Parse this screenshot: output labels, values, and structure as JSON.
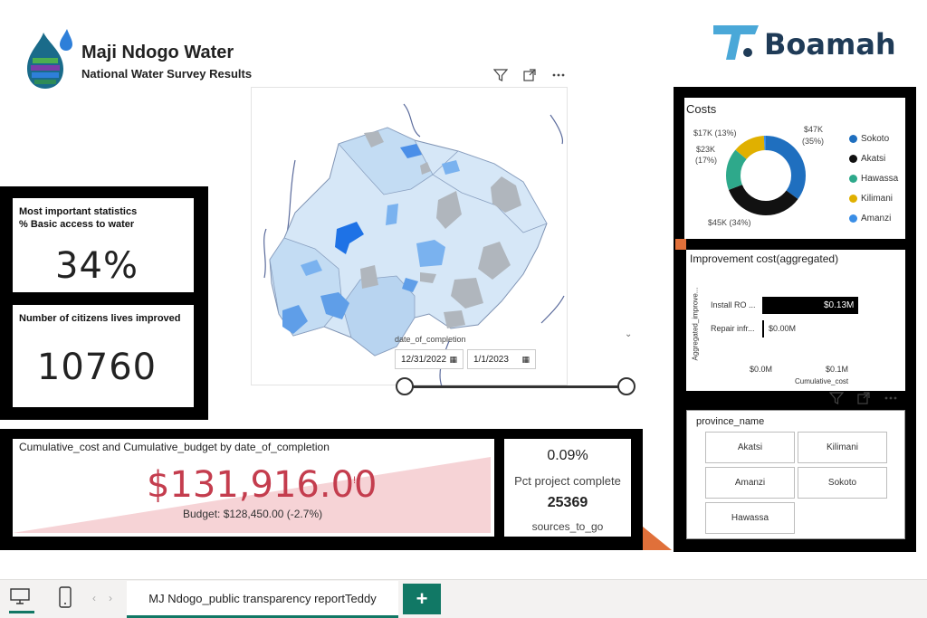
{
  "header": {
    "title": "Maji Ndogo Water",
    "subtitle": "National Water Survey Results",
    "brand": "Boamah"
  },
  "map": {
    "visual_icons": [
      "filter-icon",
      "focus-mode-icon",
      "more-options-icon"
    ]
  },
  "date_slicer": {
    "title": "date_of_completion",
    "start": "12/31/2022",
    "end": "1/1/2023"
  },
  "stats": {
    "basic_access": {
      "label_line1": "Most important statistics",
      "label_line2": "% Basic access to water",
      "value": "34%"
    },
    "citizens": {
      "label": "Number of citizens lives improved",
      "value": "10760"
    }
  },
  "budget": {
    "title": "Cumulative_cost and Cumulative_budget by date_of_completion",
    "value": "$131,916.00",
    "marker": "!",
    "budget_line": "Budget: $128,450.00 (-2.7%)"
  },
  "project": {
    "pct_value": "0.09%",
    "pct_label": "Pct project complete",
    "sources_value": "25369",
    "sources_label": "sources_to_go"
  },
  "costs_chart": {
    "title": "Costs",
    "colors": {
      "Sokoto": "#1f6fbf",
      "Akatsi": "#111111",
      "Hawassa": "#2ea98b",
      "Kilimani": "#e0b000",
      "Amanzi": "#3a8ee6"
    },
    "slice_labels": {
      "top_right_value": "$47K",
      "top_right_pct": "(35%)",
      "bottom": "$45K (34%)",
      "left_value": "$23K",
      "left_pct": "(17%)",
      "top_left": "$17K (13%)"
    },
    "legend": [
      "Sokoto",
      "Akatsi",
      "Hawassa",
      "Kilimani",
      "Amanzi"
    ]
  },
  "improvement_chart": {
    "title": "Improvement cost(aggregated)",
    "y_axis_label": "Aggregated_improve...",
    "categories": [
      "Install RO ...",
      "Repair infr..."
    ],
    "value_labels": [
      "$0.13M",
      "$0.00M"
    ],
    "x_ticks": [
      "$0.0M",
      "$0.1M"
    ],
    "x_label": "Cumulative_cost"
  },
  "province_slicer": {
    "title": "province_name",
    "options": [
      "Akatsi",
      "Kilimani",
      "Amanzi",
      "Sokoto",
      "Hawassa"
    ]
  },
  "bottom_bar": {
    "tab_label": "MJ Ndogo_public transparency reportTeddy",
    "add_label": "+"
  },
  "chart_data": [
    {
      "type": "pie",
      "title": "Costs",
      "categories": [
        "Sokoto",
        "Akatsi",
        "Hawassa",
        "Kilimani",
        "Amanzi"
      ],
      "values": [
        47,
        45,
        23,
        17,
        1
      ],
      "legend": "right"
    },
    {
      "type": "bar",
      "title": "Improvement cost(aggregated)",
      "categories": [
        "Install RO ...",
        "Repair infr..."
      ],
      "values": [
        0.13,
        0.0
      ],
      "xlabel": "Cumulative_cost",
      "ylabel": "Aggregated_improve..."
    }
  ]
}
